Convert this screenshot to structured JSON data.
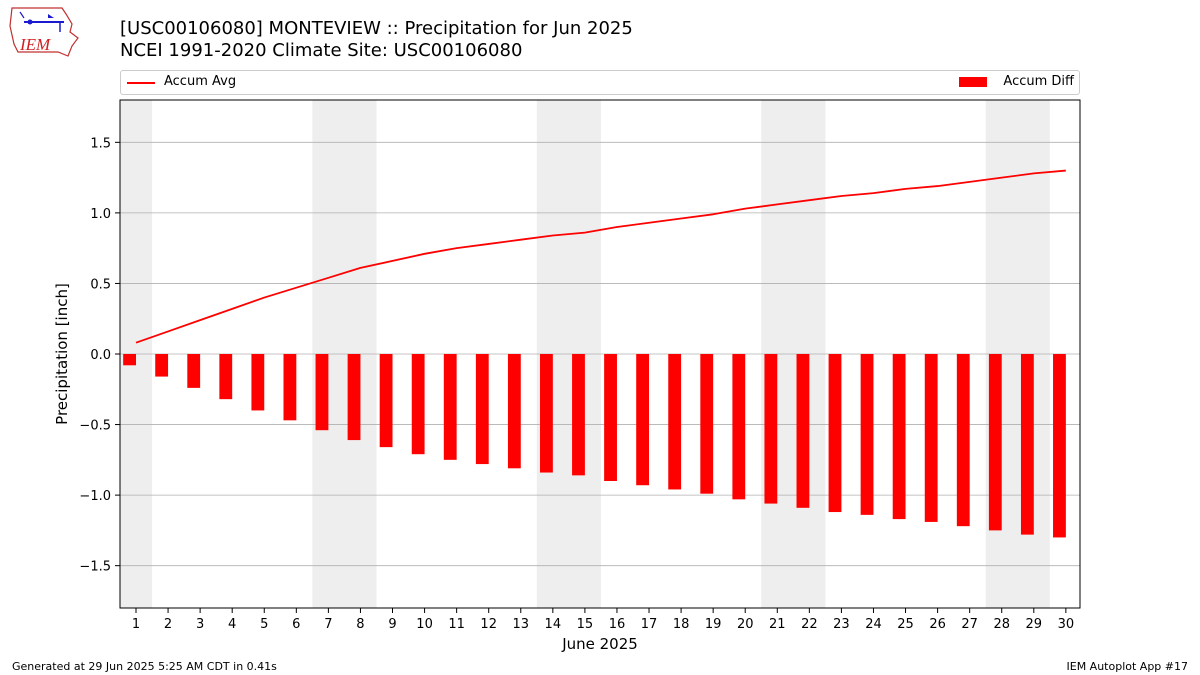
{
  "header": {
    "logo_text": "IEM",
    "title_line1": "[USC00106080] MONTEVIEW :: Precipitation for Jun 2025",
    "title_line2": "NCEI 1991-2020 Climate Site: USC00106080"
  },
  "footer": {
    "generated": "Generated at 29 Jun 2025 5:25 AM CDT in 0.41s",
    "app": "IEM Autoplot App #17"
  },
  "colors": {
    "series": "#ff0000",
    "weekend_shade": "#eeeeee",
    "grid": "#b0b0b0"
  },
  "chart_data": {
    "type": "bar",
    "xlabel": "June 2025",
    "ylabel": "Precipitation [inch]",
    "ylim": [
      -1.8,
      1.8
    ],
    "yticks": [
      -1.5,
      -1.0,
      -0.5,
      0.0,
      0.5,
      1.0,
      1.5
    ],
    "ytick_labels": [
      "−1.5",
      "−1.0",
      "−0.5",
      "0.0",
      "0.5",
      "1.0",
      "1.5"
    ],
    "categories": [
      "1",
      "2",
      "3",
      "4",
      "5",
      "6",
      "7",
      "8",
      "9",
      "10",
      "11",
      "12",
      "13",
      "14",
      "15",
      "16",
      "17",
      "18",
      "19",
      "20",
      "21",
      "22",
      "23",
      "24",
      "25",
      "26",
      "27",
      "28",
      "29",
      "30"
    ],
    "shaded_days": [
      1,
      7,
      8,
      14,
      15,
      21,
      22,
      28,
      29
    ],
    "grid": "y",
    "legend_placement": "top",
    "series": [
      {
        "name": "Accum Avg",
        "kind": "line",
        "values": [
          0.08,
          0.16,
          0.24,
          0.32,
          0.4,
          0.47,
          0.54,
          0.61,
          0.66,
          0.71,
          0.75,
          0.78,
          0.81,
          0.84,
          0.86,
          0.9,
          0.93,
          0.96,
          0.99,
          1.03,
          1.06,
          1.09,
          1.12,
          1.14,
          1.17,
          1.19,
          1.22,
          1.25,
          1.28,
          1.3
        ]
      },
      {
        "name": "Accum Diff",
        "kind": "bar",
        "values": [
          -0.08,
          -0.16,
          -0.24,
          -0.32,
          -0.4,
          -0.47,
          -0.54,
          -0.61,
          -0.66,
          -0.71,
          -0.75,
          -0.78,
          -0.81,
          -0.84,
          -0.86,
          -0.9,
          -0.93,
          -0.96,
          -0.99,
          -1.03,
          -1.06,
          -1.09,
          -1.12,
          -1.14,
          -1.17,
          -1.19,
          -1.22,
          -1.25,
          -1.28,
          -1.3
        ]
      }
    ]
  }
}
